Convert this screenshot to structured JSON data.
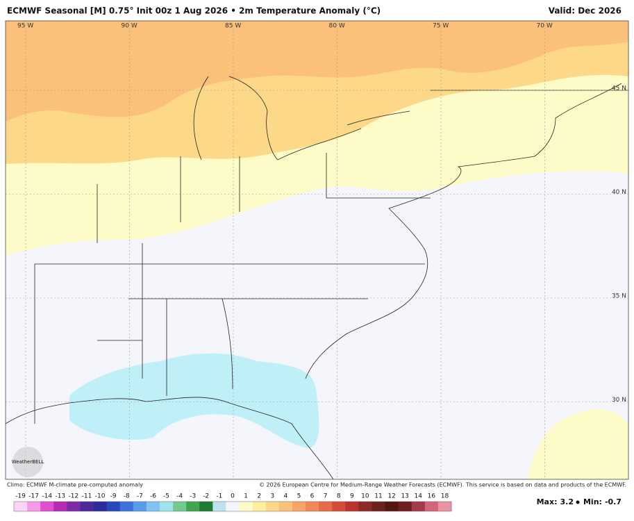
{
  "header": {
    "title": "ECMWF Seasonal [M] 0.75° Init 00z 1 Aug 2026 • 2m Temperature Anomaly (°C)",
    "valid": "Valid: Dec 2026"
  },
  "map": {
    "longitudes": [
      "95 W",
      "90 W",
      "85 W",
      "80 W",
      "75 W",
      "70 W"
    ],
    "latitudes": [
      "45 N",
      "40 N",
      "35 N",
      "30 N"
    ],
    "logo": "WeatherBELL"
  },
  "footer": {
    "climo": "Climo: ECMWF M-climate pre-computed anomaly",
    "copyright": "© 2026 European Centre for Medium-Range Weather Forecasts (ECMWF). This service is based on data and products of the ECMWF."
  },
  "colorbar": {
    "labels": [
      -19,
      -17,
      -14,
      -13,
      -12,
      -11,
      -10,
      -9,
      -8,
      -7,
      -6,
      -5,
      -4,
      -3,
      -2,
      -1,
      0,
      1,
      2,
      3,
      4,
      5,
      6,
      7,
      8,
      9,
      10,
      11,
      12,
      13,
      14,
      16,
      18
    ],
    "colors": [
      "#fbd3f4",
      "#f59ae6",
      "#e04fd0",
      "#b32bb5",
      "#7d2aa5",
      "#4d2a9c",
      "#2b2d9b",
      "#2548bd",
      "#3d72da",
      "#5a9cec",
      "#7fc4f2",
      "#9fe3ef",
      "#74c98f",
      "#3fa550",
      "#1f7a33",
      "#bfe2f1",
      "#f4f6fb",
      "#fdfbc7",
      "#fdeea0",
      "#fdd889",
      "#fbc07a",
      "#f7a468",
      "#f08858",
      "#e86b48",
      "#d64c3a",
      "#b93430",
      "#8d2a24",
      "#6b2218",
      "#53170f",
      "#6e1f1f",
      "#a33b48",
      "#d3667a",
      "#e992a4"
    ]
  },
  "stats": {
    "max_label": "Max:",
    "max": 3.2,
    "min_label": "Min:",
    "min": -0.7
  }
}
